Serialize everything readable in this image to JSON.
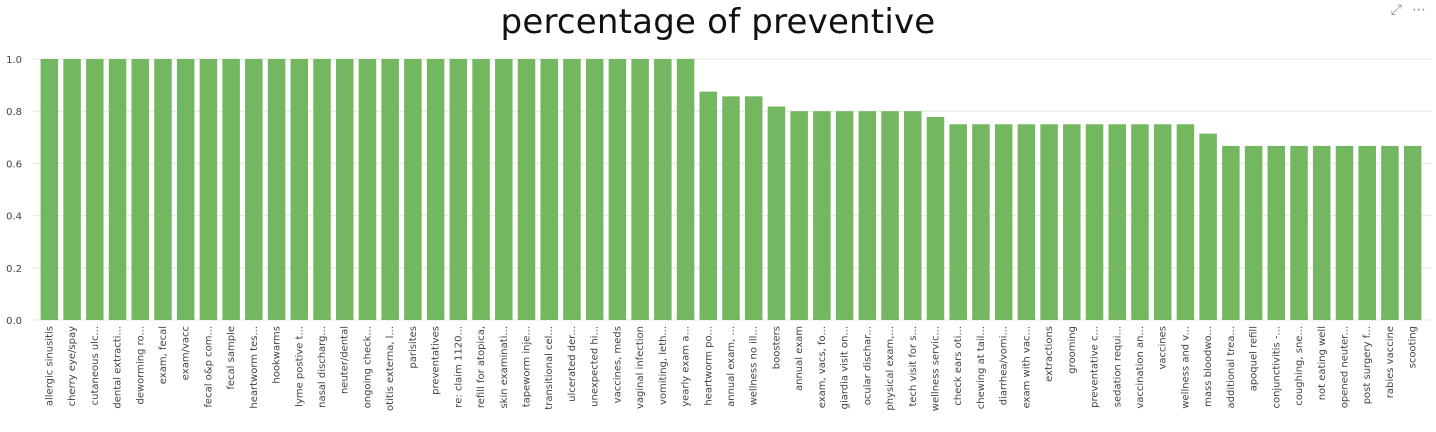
{
  "header": {
    "focus_icon": "expand-icon",
    "more_icon": "more-options-icon"
  },
  "chart_data": {
    "type": "bar",
    "title": "percentage of preventive",
    "xlabel": "",
    "ylabel": "",
    "ylim": [
      0,
      1
    ],
    "yticks": [
      "0.0",
      "0.2",
      "0.4",
      "0.6",
      "0.8",
      "1.0"
    ],
    "grid": true,
    "legend": "none",
    "bar_color": "#73B761",
    "categories": [
      "allergic sinusitis",
      "cherry eye/spay",
      "cutaneous ulc...",
      "dental extracti...",
      "deworming ro...",
      "exam, fecal",
      "exam/vacc",
      "fecal o&p com...",
      "fecal sample",
      "heartworm tes...",
      "hookwarms",
      "lyme postive t...",
      "nasal discharg...",
      "neuter/dental",
      "ongoing check...",
      "otitis externa, l...",
      "parisites",
      "preventatives",
      "re: claim 1120...",
      "refill for atopica,",
      "skin examinati...",
      "tapeworm inje...",
      "transitional cel...",
      "ulcerated der...",
      "unexpected hi...",
      "vaccines, meds",
      "vaginal infection",
      "vomiting, leth...",
      "yearly exam a...",
      "heartworm po...",
      "annual exam, ...",
      "wellness no ill...",
      "boosters",
      "annual exam",
      "exam, vacs, fo...",
      "giardia visit on...",
      "ocular dischar...",
      "physical exam,...",
      "tech visit for s...",
      "wellness servic...",
      "check ears oti...",
      "chewing at tail...",
      "diarrhea/vomi...",
      "exam with vac...",
      "extractions",
      "grooming",
      "preventative c...",
      "sedation requi...",
      "vaccination an...",
      "vaccines",
      "wellness and v...",
      "mass bloodwo...",
      "additional trea...",
      "apoquel refill",
      "conjunctivitis -...",
      "coughing, sne...",
      "not eating well",
      "opened neuter...",
      "post surgery f...",
      "rabies vaccine",
      "scooting"
    ],
    "values": [
      1,
      1,
      1,
      1,
      1,
      1,
      1,
      1,
      1,
      1,
      1,
      1,
      1,
      1,
      1,
      1,
      1,
      1,
      1,
      1,
      1,
      1,
      1,
      1,
      1,
      1,
      1,
      1,
      1,
      0.875,
      0.857,
      0.857,
      0.818,
      0.8,
      0.8,
      0.8,
      0.8,
      0.8,
      0.8,
      0.778,
      0.75,
      0.75,
      0.75,
      0.75,
      0.75,
      0.75,
      0.75,
      0.75,
      0.75,
      0.75,
      0.75,
      0.714,
      0.667,
      0.667,
      0.667,
      0.667,
      0.667,
      0.667,
      0.667,
      0.667,
      0.667
    ]
  }
}
